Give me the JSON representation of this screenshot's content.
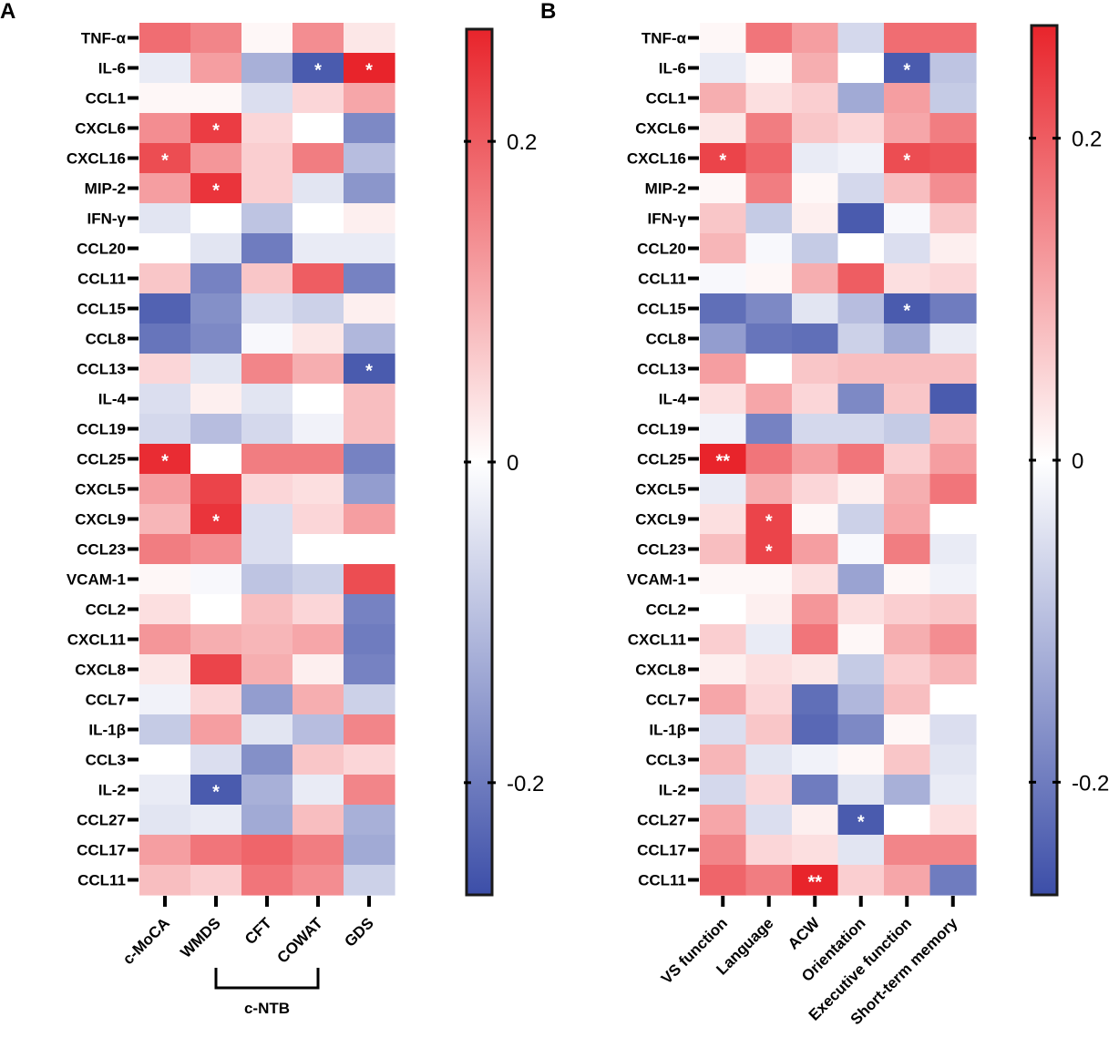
{
  "colors": {
    "negative": "#3c4ea8",
    "neutral": "#ffffff",
    "positive": "#e8242b",
    "frame": "#1a1a1a"
  },
  "chart_data": [
    {
      "type": "heatmap",
      "panel_label": "A",
      "rows": [
        "TNF-α",
        "IL-6",
        "CCL1",
        "CXCL6",
        "CXCL16",
        "MIP-2",
        "IFN-γ",
        "CCL20",
        "CCL11",
        "CCL15",
        "CCL8",
        "CCL13",
        "IL-4",
        "CCL19",
        "CCL25",
        "CXCL5",
        "CXCL9",
        "CCL23",
        "VCAM-1",
        "CCL2",
        "CXCL11",
        "CXCL8",
        "CCL7",
        "IL-1β",
        "CCL3",
        "IL-2",
        "CCL27",
        "CCL17",
        "CCL11"
      ],
      "columns": [
        "c-MoCA",
        "WMDS",
        "CFT",
        "COWAT",
        "GDS"
      ],
      "group_label": "c-NTB",
      "group_columns": [
        1,
        3
      ],
      "values": [
        [
          0.18,
          0.15,
          0.01,
          0.14,
          0.03
        ],
        [
          -0.03,
          0.12,
          -0.12,
          -0.25,
          0.27
        ],
        [
          0.01,
          0.01,
          -0.05,
          0.05,
          0.11
        ],
        [
          0.14,
          0.24,
          0.05,
          0.0,
          -0.18
        ],
        [
          0.22,
          0.13,
          0.06,
          0.16,
          -0.1
        ],
        [
          0.12,
          0.25,
          0.06,
          -0.04,
          -0.16
        ],
        [
          -0.04,
          0.0,
          -0.09,
          0.0,
          0.02
        ],
        [
          0.0,
          -0.04,
          -0.2,
          -0.03,
          -0.03
        ],
        [
          0.07,
          -0.19,
          0.07,
          0.2,
          -0.19
        ],
        [
          -0.24,
          -0.17,
          -0.05,
          -0.07,
          0.02
        ],
        [
          -0.21,
          -0.18,
          -0.01,
          0.03,
          -0.11
        ],
        [
          0.05,
          -0.04,
          0.15,
          0.1,
          -0.25
        ],
        [
          -0.05,
          0.02,
          -0.04,
          0.0,
          0.08
        ],
        [
          -0.06,
          -0.1,
          -0.06,
          -0.02,
          0.08
        ],
        [
          0.26,
          0.0,
          0.16,
          0.16,
          -0.19
        ],
        [
          0.12,
          0.23,
          0.05,
          0.04,
          -0.15
        ],
        [
          0.09,
          0.25,
          -0.05,
          0.05,
          0.12
        ],
        [
          0.16,
          0.14,
          -0.05,
          0.0,
          0.0
        ],
        [
          0.01,
          -0.01,
          -0.09,
          -0.07,
          0.22
        ],
        [
          0.04,
          0.0,
          0.08,
          0.05,
          -0.19
        ],
        [
          0.13,
          0.1,
          0.09,
          0.11,
          -0.2
        ],
        [
          0.03,
          0.23,
          0.1,
          0.02,
          -0.19
        ],
        [
          -0.02,
          0.05,
          -0.15,
          0.1,
          -0.07
        ],
        [
          -0.08,
          0.12,
          -0.04,
          -0.1,
          0.15
        ],
        [
          0.0,
          -0.05,
          -0.17,
          0.07,
          0.05
        ],
        [
          -0.03,
          -0.25,
          -0.12,
          -0.03,
          0.15
        ],
        [
          -0.04,
          -0.03,
          -0.13,
          0.08,
          -0.12
        ],
        [
          0.12,
          0.17,
          0.19,
          0.16,
          -0.13
        ],
        [
          0.08,
          0.06,
          0.17,
          0.14,
          -0.07
        ]
      ],
      "annotations": [
        {
          "row": 1,
          "col": 3,
          "text": "*"
        },
        {
          "row": 1,
          "col": 4,
          "text": "*"
        },
        {
          "row": 3,
          "col": 1,
          "text": "*"
        },
        {
          "row": 4,
          "col": 0,
          "text": "*"
        },
        {
          "row": 5,
          "col": 1,
          "text": "*"
        },
        {
          "row": 11,
          "col": 4,
          "text": "*"
        },
        {
          "row": 14,
          "col": 0,
          "text": "*"
        },
        {
          "row": 16,
          "col": 1,
          "text": "*"
        },
        {
          "row": 25,
          "col": 1,
          "text": "*"
        }
      ],
      "colorbar": {
        "range": [
          -0.27,
          0.27
        ],
        "ticks": [
          -0.2,
          0,
          0.2
        ],
        "tick_labels": [
          "-0.2",
          "0",
          "0.2"
        ]
      }
    },
    {
      "type": "heatmap",
      "panel_label": "B",
      "rows": [
        "TNF-α",
        "IL-6",
        "CCL1",
        "CXCL6",
        "CXCL16",
        "MIP-2",
        "IFN-γ",
        "CCL20",
        "CCL11",
        "CCL15",
        "CCL8",
        "CCL13",
        "IL-4",
        "CCL19",
        "CCL25",
        "CXCL5",
        "CXCL9",
        "CCL23",
        "VCAM-1",
        "CCL2",
        "CXCL11",
        "CXCL8",
        "CCL7",
        "IL-1β",
        "CCL3",
        "IL-2",
        "CCL27",
        "CCL17",
        "CCL11"
      ],
      "columns": [
        "VS function",
        "Language",
        "ACW",
        "Orientation",
        "Executive function",
        "Short-term memory"
      ],
      "values": [
        [
          0.01,
          0.17,
          0.12,
          -0.06,
          0.18,
          0.18
        ],
        [
          -0.03,
          0.01,
          0.1,
          0.0,
          -0.25,
          -0.09
        ],
        [
          0.1,
          0.04,
          0.06,
          -0.13,
          0.12,
          -0.08
        ],
        [
          0.03,
          0.16,
          0.07,
          0.05,
          0.11,
          0.16
        ],
        [
          0.23,
          0.19,
          -0.03,
          -0.02,
          0.22,
          0.21
        ],
        [
          0.01,
          0.16,
          0.01,
          -0.06,
          0.08,
          0.14
        ],
        [
          0.07,
          -0.08,
          0.02,
          -0.25,
          -0.01,
          0.07
        ],
        [
          0.09,
          -0.01,
          -0.08,
          0.0,
          -0.05,
          0.02
        ],
        [
          -0.01,
          0.01,
          0.1,
          0.2,
          0.04,
          0.05
        ],
        [
          -0.22,
          -0.18,
          -0.04,
          -0.1,
          -0.25,
          -0.2
        ],
        [
          -0.15,
          -0.21,
          -0.22,
          -0.07,
          -0.13,
          -0.03
        ],
        [
          0.12,
          0.0,
          0.07,
          0.08,
          0.08,
          0.08
        ],
        [
          0.04,
          0.11,
          0.05,
          -0.18,
          0.07,
          -0.25
        ],
        [
          -0.02,
          -0.19,
          -0.06,
          -0.06,
          -0.08,
          0.08
        ],
        [
          0.27,
          0.17,
          0.12,
          0.17,
          0.06,
          0.12
        ],
        [
          -0.03,
          0.1,
          0.05,
          0.02,
          0.1,
          0.17
        ],
        [
          0.04,
          0.23,
          0.01,
          -0.07,
          0.11,
          0.0
        ],
        [
          0.08,
          0.23,
          0.12,
          -0.01,
          0.16,
          -0.03
        ],
        [
          0.01,
          0.01,
          0.04,
          -0.14,
          0.01,
          -0.02
        ],
        [
          0.0,
          0.02,
          0.13,
          0.04,
          0.06,
          0.07
        ],
        [
          0.06,
          -0.03,
          0.17,
          0.01,
          0.1,
          0.14
        ],
        [
          0.02,
          0.04,
          0.03,
          -0.08,
          0.06,
          0.09
        ],
        [
          0.11,
          0.05,
          -0.22,
          -0.11,
          0.08,
          0.0
        ],
        [
          -0.05,
          0.07,
          -0.23,
          -0.18,
          0.01,
          -0.05
        ],
        [
          0.09,
          -0.04,
          -0.02,
          0.01,
          0.07,
          -0.04
        ],
        [
          -0.06,
          0.05,
          -0.2,
          -0.04,
          -0.12,
          -0.03
        ],
        [
          0.11,
          -0.05,
          0.02,
          -0.25,
          0.0,
          0.04
        ],
        [
          0.15,
          0.05,
          0.04,
          -0.04,
          0.15,
          0.15
        ],
        [
          0.19,
          0.16,
          0.27,
          0.06,
          0.11,
          -0.2
        ]
      ],
      "annotations": [
        {
          "row": 1,
          "col": 4,
          "text": "*"
        },
        {
          "row": 4,
          "col": 0,
          "text": "*"
        },
        {
          "row": 4,
          "col": 4,
          "text": "*"
        },
        {
          "row": 9,
          "col": 4,
          "text": "*"
        },
        {
          "row": 14,
          "col": 0,
          "text": "**"
        },
        {
          "row": 16,
          "col": 1,
          "text": "*"
        },
        {
          "row": 17,
          "col": 1,
          "text": "*"
        },
        {
          "row": 26,
          "col": 3,
          "text": "*"
        },
        {
          "row": 28,
          "col": 2,
          "text": "**"
        }
      ],
      "colorbar": {
        "range": [
          -0.27,
          0.27
        ],
        "ticks": [
          -0.2,
          0,
          0.2
        ],
        "tick_labels": [
          "-0.2",
          "0",
          "0.2"
        ]
      }
    }
  ]
}
